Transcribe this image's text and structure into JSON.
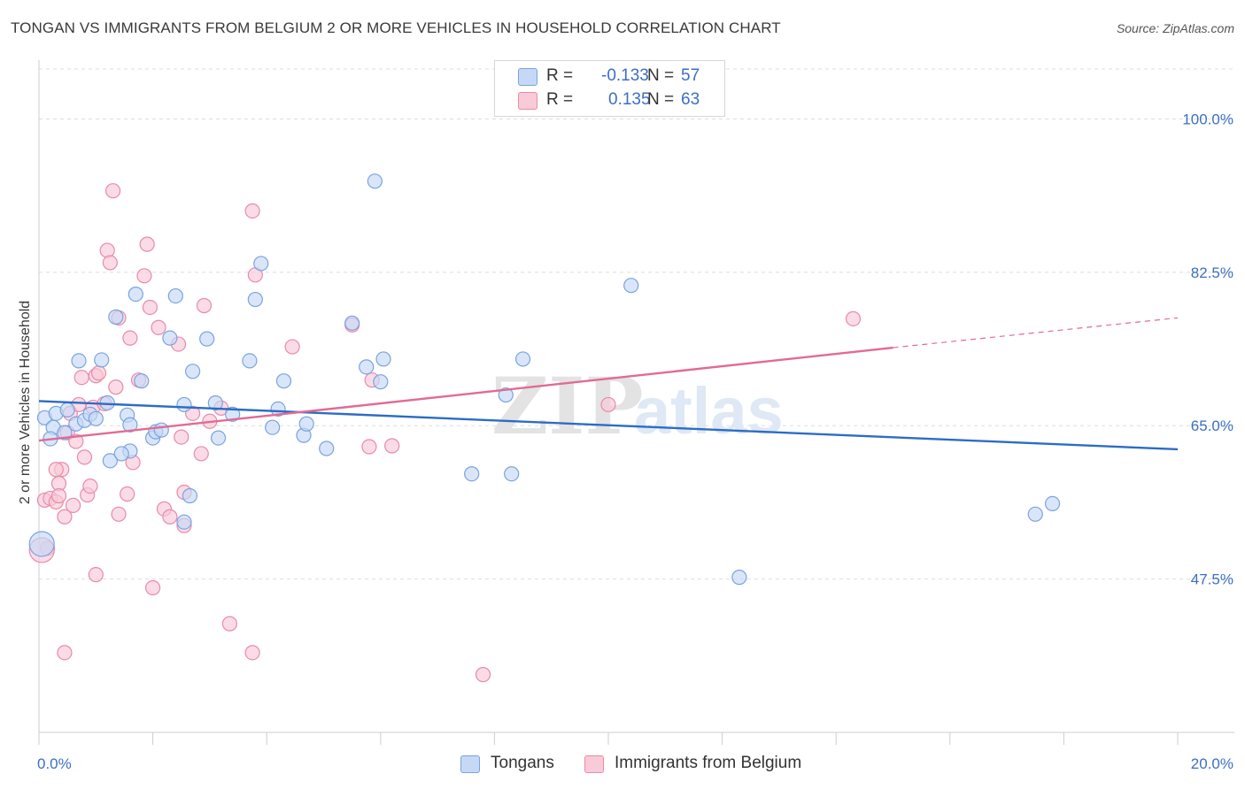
{
  "title": "TONGAN VS IMMIGRANTS FROM BELGIUM 2 OR MORE VEHICLES IN HOUSEHOLD CORRELATION CHART",
  "source": "Source: ZipAtlas.com",
  "legend_top": {
    "rows": [
      {
        "r_label": "R =",
        "r_value": "-0.133",
        "n_label": "N =",
        "n_value": "57"
      },
      {
        "r_label": "R =",
        "r_value": "0.135",
        "n_label": "N =",
        "n_value": "63"
      }
    ]
  },
  "legend_bottom": {
    "items": [
      {
        "label": "Tongans"
      },
      {
        "label": "Immigrants from Belgium"
      }
    ]
  },
  "colors": {
    "blue_fill": "#c5d9f7",
    "blue_stroke": "#7aa3de",
    "blue_line": "#2c6cc7",
    "pink_fill": "#f9cad8",
    "pink_stroke": "#e98aa8",
    "pink_line": "#e26a93",
    "tick_text": "#3b6fc4",
    "grid": "#dddddd"
  },
  "chart_data": {
    "type": "scatter",
    "title": "TONGAN VS IMMIGRANTS FROM BELGIUM 2 OR MORE VEHICLES IN HOUSEHOLD CORRELATION CHART",
    "xlabel": "",
    "ylabel": "2 or more Vehicles in Household",
    "xlim": [
      0,
      20
    ],
    "ylim": [
      30,
      106
    ],
    "x_tick_labels": [
      "0.0%",
      "20.0%"
    ],
    "y_ticks": [
      47.5,
      65.0,
      82.5,
      100.0
    ],
    "y_tick_labels": [
      "47.5%",
      "65.0%",
      "82.5%",
      "100.0%"
    ],
    "grid": true,
    "legend_position": "top-center",
    "watermark": "ZIPatlas",
    "series": [
      {
        "name": "Tongans",
        "color": "#c5d9f7",
        "points": [
          [
            0.1,
            65.9
          ],
          [
            0.3,
            66.4
          ],
          [
            0.25,
            64.8
          ],
          [
            0.45,
            64.2
          ],
          [
            0.5,
            66.8
          ],
          [
            0.65,
            65.2
          ],
          [
            0.2,
            63.5
          ],
          [
            0.8,
            65.6
          ],
          [
            0.9,
            66.3
          ],
          [
            1.0,
            65.8
          ],
          [
            1.2,
            67.6
          ],
          [
            0.7,
            72.4
          ],
          [
            1.1,
            72.5
          ],
          [
            1.35,
            77.4
          ],
          [
            1.7,
            80.0
          ],
          [
            1.8,
            70.1
          ],
          [
            1.6,
            62.1
          ],
          [
            1.25,
            61.0
          ],
          [
            1.55,
            66.2
          ],
          [
            1.6,
            65.1
          ],
          [
            1.45,
            61.8
          ],
          [
            2.0,
            63.6
          ],
          [
            2.05,
            64.3
          ],
          [
            2.15,
            64.5
          ],
          [
            2.3,
            75.0
          ],
          [
            2.4,
            79.8
          ],
          [
            2.55,
            67.4
          ],
          [
            2.7,
            71.2
          ],
          [
            2.95,
            74.9
          ],
          [
            3.1,
            67.6
          ],
          [
            3.15,
            63.6
          ],
          [
            3.4,
            66.3
          ],
          [
            3.7,
            72.4
          ],
          [
            3.8,
            79.4
          ],
          [
            3.9,
            83.5
          ],
          [
            4.1,
            64.8
          ],
          [
            4.2,
            66.9
          ],
          [
            4.3,
            70.1
          ],
          [
            4.65,
            63.9
          ],
          [
            4.7,
            65.2
          ],
          [
            5.05,
            62.4
          ],
          [
            5.5,
            76.7
          ],
          [
            5.75,
            71.7
          ],
          [
            6.0,
            70.0
          ],
          [
            6.05,
            72.6
          ],
          [
            5.9,
            92.9
          ],
          [
            7.6,
            59.5
          ],
          [
            8.2,
            68.5
          ],
          [
            8.3,
            59.5
          ],
          [
            8.5,
            72.6
          ],
          [
            10.4,
            81.0
          ],
          [
            12.3,
            47.7
          ],
          [
            17.5,
            54.9
          ],
          [
            17.8,
            56.1
          ],
          [
            0.05,
            51.5
          ],
          [
            2.55,
            54.0
          ],
          [
            2.65,
            57.0
          ]
        ]
      },
      {
        "name": "Immigrants from Belgium",
        "color": "#f9cad8",
        "points": [
          [
            0.1,
            56.5
          ],
          [
            0.2,
            56.7
          ],
          [
            0.15,
            51.0
          ],
          [
            0.3,
            56.3
          ],
          [
            0.35,
            58.4
          ],
          [
            0.4,
            60.0
          ],
          [
            0.35,
            57.0
          ],
          [
            0.45,
            54.6
          ],
          [
            0.5,
            64.2
          ],
          [
            0.55,
            66.4
          ],
          [
            0.6,
            55.9
          ],
          [
            0.65,
            63.2
          ],
          [
            0.7,
            67.4
          ],
          [
            0.75,
            70.5
          ],
          [
            0.8,
            61.4
          ],
          [
            0.85,
            57.1
          ],
          [
            0.9,
            58.1
          ],
          [
            0.95,
            67.1
          ],
          [
            1.0,
            70.7
          ],
          [
            1.05,
            71.0
          ],
          [
            1.15,
            67.5
          ],
          [
            1.2,
            85.0
          ],
          [
            1.25,
            83.6
          ],
          [
            1.3,
            91.8
          ],
          [
            1.35,
            69.4
          ],
          [
            1.4,
            77.3
          ],
          [
            1.55,
            57.2
          ],
          [
            1.6,
            75.0
          ],
          [
            1.75,
            70.2
          ],
          [
            1.85,
            82.1
          ],
          [
            1.9,
            85.7
          ],
          [
            1.95,
            78.5
          ],
          [
            2.1,
            76.2
          ],
          [
            2.2,
            55.5
          ],
          [
            2.3,
            54.6
          ],
          [
            2.45,
            74.3
          ],
          [
            2.5,
            63.7
          ],
          [
            2.55,
            57.4
          ],
          [
            2.7,
            66.4
          ],
          [
            2.85,
            61.8
          ],
          [
            2.9,
            78.7
          ],
          [
            3.0,
            65.5
          ],
          [
            3.2,
            67.0
          ],
          [
            3.35,
            42.4
          ],
          [
            3.75,
            89.5
          ],
          [
            3.8,
            82.2
          ],
          [
            4.45,
            74.0
          ],
          [
            5.5,
            76.5
          ],
          [
            5.8,
            62.6
          ],
          [
            5.85,
            70.2
          ],
          [
            6.2,
            62.7
          ],
          [
            7.8,
            36.6
          ],
          [
            10.0,
            67.4
          ],
          [
            14.3,
            77.2
          ],
          [
            1.0,
            48.0
          ],
          [
            0.45,
            39.1
          ],
          [
            2.0,
            46.5
          ],
          [
            3.75,
            39.1
          ],
          [
            2.55,
            53.6
          ],
          [
            1.65,
            60.8
          ],
          [
            1.4,
            54.9
          ],
          [
            0.3,
            60.0
          ],
          [
            0.05,
            50.8
          ]
        ]
      }
    ],
    "trend_lines": [
      {
        "series": "Tongans",
        "x": [
          0,
          20
        ],
        "y": [
          67.8,
          62.3
        ],
        "style": "solid"
      },
      {
        "series": "Immigrants from Belgium",
        "x": [
          0,
          15
        ],
        "y": [
          63.3,
          73.9
        ],
        "style": "solid"
      },
      {
        "series": "Immigrants from Belgium",
        "x": [
          15,
          20
        ],
        "y": [
          73.9,
          77.3
        ],
        "style": "dashed"
      }
    ]
  }
}
